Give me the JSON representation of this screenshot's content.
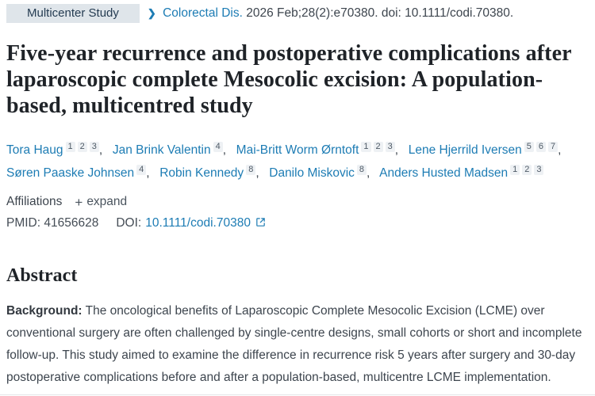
{
  "badge": {
    "label": "Multicenter Study"
  },
  "citation": {
    "chevron": "❯",
    "journal": "Colorectal Dis.",
    "details": "2026 Feb;28(2):e70380. doi: 10.1111/codi.70380."
  },
  "title": "Five-year recurrence and postoperative complications after laparoscopic complete Mesocolic excision: A population-based, multicentred study",
  "authors": [
    {
      "name": "Tora Haug",
      "sups": [
        "1",
        "2",
        "3"
      ]
    },
    {
      "name": "Jan Brink Valentin",
      "sups": [
        "4"
      ]
    },
    {
      "name": "Mai-Britt Worm Ørntoft",
      "sups": [
        "1",
        "2",
        "3"
      ]
    },
    {
      "name": "Lene Hjerrild Iversen",
      "sups": [
        "5",
        "6",
        "7"
      ]
    },
    {
      "name": "Søren Paaske Johnsen",
      "sups": [
        "4"
      ]
    },
    {
      "name": "Robin Kennedy",
      "sups": [
        "8"
      ]
    },
    {
      "name": "Danilo Miskovic",
      "sups": [
        "8"
      ]
    },
    {
      "name": "Anders Husted Madsen",
      "sups": [
        "1",
        "2",
        "3"
      ]
    }
  ],
  "affiliations": {
    "label": "Affiliations",
    "plus": "+",
    "expand_label": "expand"
  },
  "ids": {
    "pmid_label": "PMID:",
    "pmid_value": "41656628",
    "doi_label": "DOI:",
    "doi_value": "10.1111/codi.70380"
  },
  "abstract": {
    "heading": "Abstract",
    "background_label": "Background:",
    "background_text": "The oncological benefits of Laparoscopic Complete Mesocolic Excision (LCME) over conventional surgery are often challenged by single-centre designs, small cohorts or short and incomplete follow-up. This study aimed to examine the difference in recurrence risk 5 years after surgery and 30-day postoperative complications before and after a population-based, multicentre LCME implementation."
  },
  "colors": {
    "link": "#1d7cb4",
    "badge_bg": "#dfe5ea",
    "badge_text": "#253c52",
    "sup_bg": "#eef1f4"
  }
}
